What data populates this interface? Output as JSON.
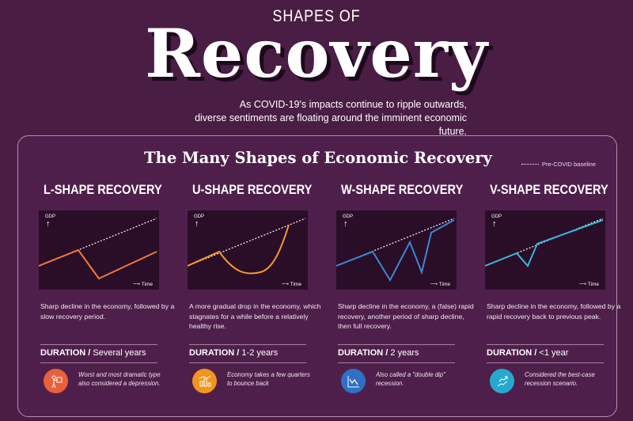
{
  "header": {
    "kicker": "SHAPES OF",
    "title": "Recovery",
    "intro_line1": "As COVID-19's impacts continue to ripple outwards,",
    "intro_line2": "diverse sentiments are floating around the imminent economic future."
  },
  "panel": {
    "title": "The Many Shapes of Economic Recovery",
    "legend_label": "Pre-COVID baseline"
  },
  "axis": {
    "y_label": "GDP",
    "x_label": "Time"
  },
  "colors": {
    "background": "#4a1d45",
    "baseline": "#ffffff",
    "l_shape": "#f07a3a",
    "u_shape": "#f59a2a",
    "w_shape": "#3f86d6",
    "v_shape": "#39b7d8"
  },
  "shapes": [
    {
      "title": "L-SHAPE RECOVERY",
      "description": "Sharp decline in the economy, followed by a slow recovery period.",
      "duration_label": "DURATION /",
      "duration_value": "Several years",
      "icon": "person-sign-icon",
      "note": "Worst and most dramatic type also considered a depression."
    },
    {
      "title": "U-SHAPE RECOVERY",
      "description": "A more gradual drop in the economy, which stagnates for a while before a relatively healthy rise.",
      "duration_label": "DURATION /",
      "duration_value": "1-2 years",
      "icon": "chart-building-icon",
      "note": "Economy takes a few quarters to bounce back"
    },
    {
      "title": "W-SHAPE RECOVERY",
      "description": "Sharp decline in the economy, a (false) rapid recovery, another period of sharp decline, then full recovery.",
      "duration_label": "DURATION /",
      "duration_value": "2 years",
      "icon": "trend-chart-icon",
      "note": "Also called a \"double dip\" recession."
    },
    {
      "title": "V-SHAPE RECOVERY",
      "description": "Sharp decline in the economy, followed by a rapid recovery back to previous peak.",
      "duration_label": "DURATION /",
      "duration_value": "<1 year",
      "icon": "hand-growth-icon",
      "note": "Considered the best-case recession scenario."
    }
  ]
}
